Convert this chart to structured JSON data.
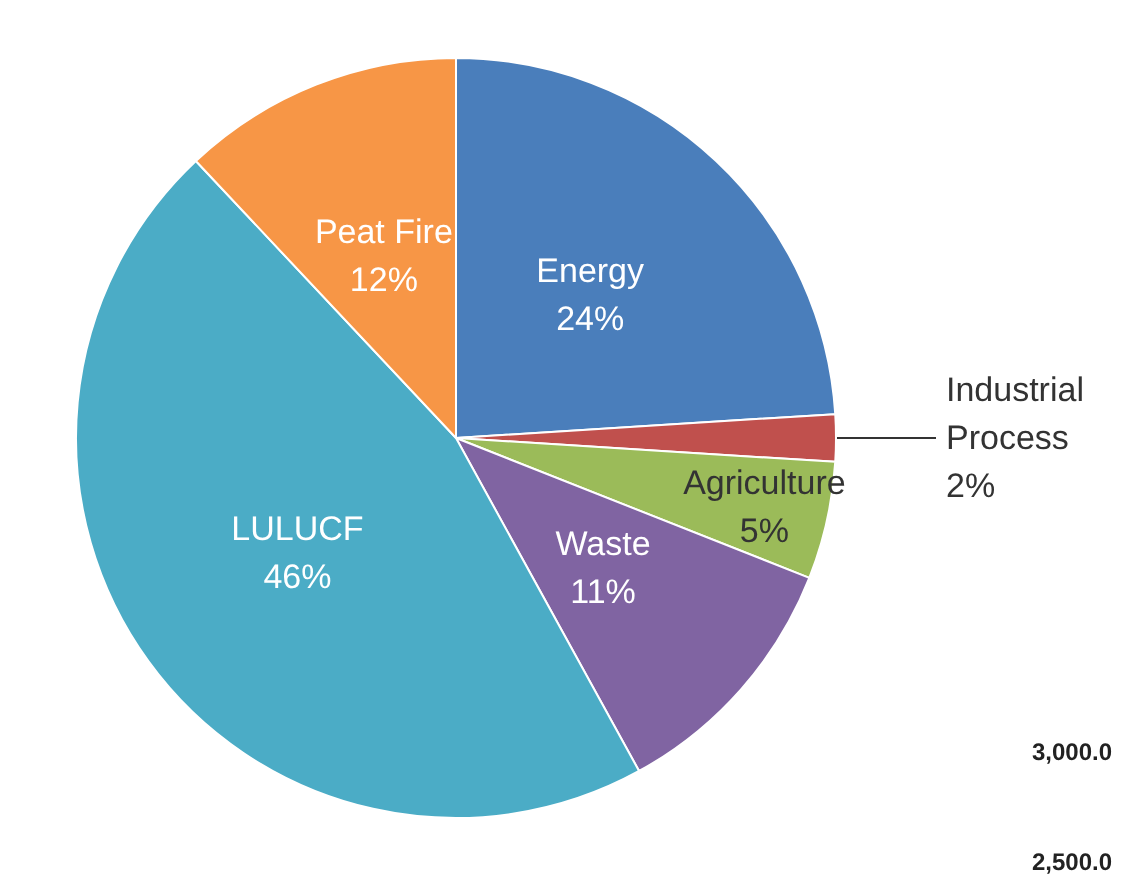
{
  "chart_data": {
    "type": "pie",
    "categories": [
      "Energy",
      "Industrial Process",
      "Agriculture",
      "Waste",
      "LULUCF",
      "Peat Fire"
    ],
    "values": [
      24,
      2,
      5,
      11,
      46,
      12
    ],
    "colors": [
      "#4a7ebb",
      "#c0504d",
      "#9bbb59",
      "#8064a2",
      "#4bacc6",
      "#f79646"
    ],
    "value_labels": [
      "24%",
      "2%",
      "5%",
      "11%",
      "46%",
      "12%"
    ],
    "legend": false,
    "annotations": [
      "3,000.0",
      "2,500.0"
    ]
  }
}
